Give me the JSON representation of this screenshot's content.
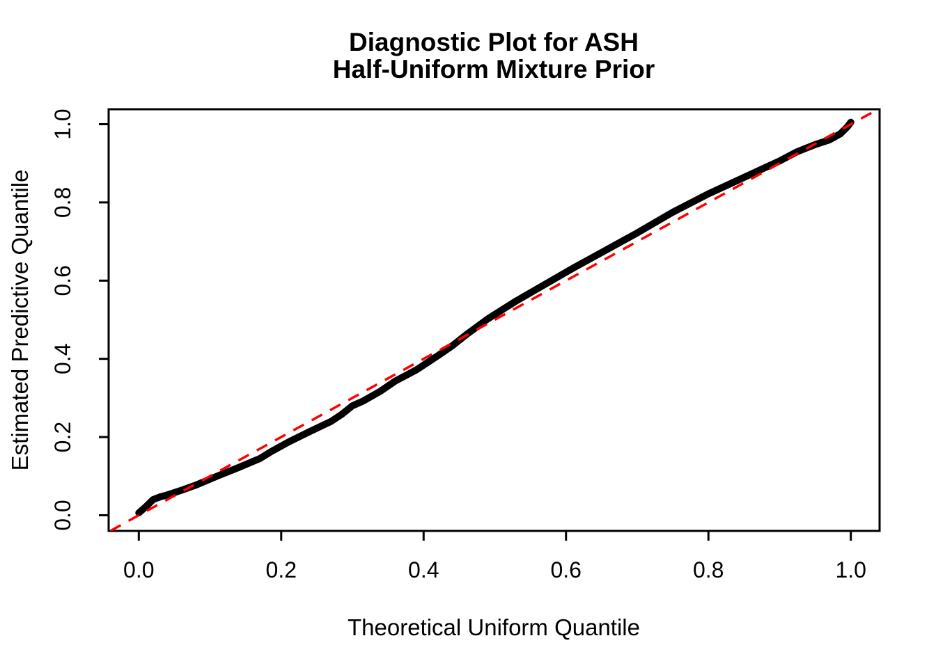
{
  "figure": {
    "background_color": "#ffffff",
    "title_line1": "Diagnostic Plot for ASH",
    "title_line2": "Half-Uniform Mixture Prior"
  },
  "chart_data": {
    "type": "line",
    "title": "Diagnostic Plot for ASH\nHalf-Uniform Mixture Prior",
    "xlabel": "Theoretical Uniform Quantile",
    "ylabel": "Estimated Predictive Quantile",
    "xlim": [
      -0.042,
      1.04
    ],
    "ylim": [
      -0.041,
      1.039
    ],
    "grid": false,
    "legend": "none",
    "xticks": [
      0.0,
      0.2,
      0.4,
      0.6,
      0.8,
      1.0
    ],
    "yticks": [
      0.0,
      0.2,
      0.4,
      0.6,
      0.8,
      1.0
    ],
    "xtick_labels": [
      "0.0",
      "0.2",
      "0.4",
      "0.6",
      "0.8",
      "1.0"
    ],
    "ytick_labels": [
      "0.0",
      "0.2",
      "0.4",
      "0.6",
      "0.8",
      "1.0"
    ],
    "series": [
      {
        "name": "estimated-predictive-quantile-curve",
        "description": "thick black QQ curve of estimated predictive quantiles vs theoretical uniform quantiles",
        "color": "#000000",
        "style": "solid",
        "stroke_width": 10,
        "points": [
          [
            0.0,
            0.006
          ],
          [
            0.005,
            0.014
          ],
          [
            0.01,
            0.022
          ],
          [
            0.02,
            0.04
          ],
          [
            0.03,
            0.047
          ],
          [
            0.04,
            0.052
          ],
          [
            0.06,
            0.064
          ],
          [
            0.08,
            0.077
          ],
          [
            0.11,
            0.1
          ],
          [
            0.14,
            0.122
          ],
          [
            0.17,
            0.145
          ],
          [
            0.185,
            0.162
          ],
          [
            0.21,
            0.187
          ],
          [
            0.24,
            0.214
          ],
          [
            0.27,
            0.24
          ],
          [
            0.285,
            0.258
          ],
          [
            0.3,
            0.28
          ],
          [
            0.315,
            0.292
          ],
          [
            0.34,
            0.318
          ],
          [
            0.36,
            0.343
          ],
          [
            0.39,
            0.372
          ],
          [
            0.42,
            0.408
          ],
          [
            0.44,
            0.433
          ],
          [
            0.46,
            0.462
          ],
          [
            0.49,
            0.502
          ],
          [
            0.53,
            0.548
          ],
          [
            0.57,
            0.59
          ],
          [
            0.61,
            0.632
          ],
          [
            0.65,
            0.672
          ],
          [
            0.7,
            0.722
          ],
          [
            0.75,
            0.775
          ],
          [
            0.8,
            0.822
          ],
          [
            0.85,
            0.864
          ],
          [
            0.9,
            0.906
          ],
          [
            0.925,
            0.93
          ],
          [
            0.95,
            0.948
          ],
          [
            0.97,
            0.96
          ],
          [
            0.985,
            0.975
          ],
          [
            0.995,
            0.993
          ],
          [
            1.0,
            1.005
          ]
        ]
      },
      {
        "name": "reference-diagonal-y-equals-x",
        "description": "red dashed 45-degree reference line y = x",
        "color": "#ff0000",
        "style": "dashed",
        "stroke_width": 3.5,
        "points": [
          [
            -0.04,
            -0.04
          ],
          [
            1.038,
            1.038
          ]
        ]
      }
    ]
  }
}
